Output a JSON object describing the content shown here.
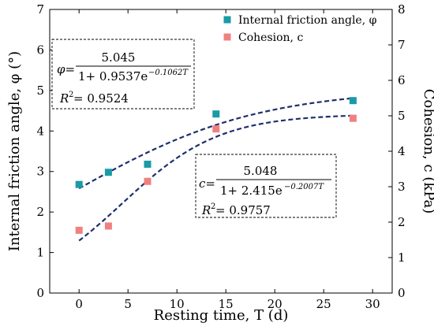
{
  "chart_data": {
    "type": "scatter",
    "xlabel": "Resting time, T (d)",
    "ylabel_left": "Internal friction angle, φ (°)",
    "ylabel_right": "Cohesion, c (kPa)",
    "xlim": [
      -3,
      32
    ],
    "ylim_left": [
      0,
      7
    ],
    "ylim_right": [
      0,
      8
    ],
    "x_ticks": [
      0,
      5,
      10,
      15,
      20,
      25,
      30
    ],
    "y_left_ticks": [
      0,
      1,
      2,
      3,
      4,
      5,
      6,
      7
    ],
    "y_right_ticks": [
      0,
      1,
      2,
      3,
      4,
      5,
      6,
      7,
      8
    ],
    "legend_position": "top-right",
    "series": [
      {
        "name": "Internal friction angle, φ",
        "axis": "left",
        "marker": "square",
        "color": "#1a9ba6",
        "x": [
          0,
          3,
          7,
          14,
          28
        ],
        "y": [
          2.68,
          2.98,
          3.18,
          4.42,
          4.75
        ]
      },
      {
        "name": "Cohesion, c",
        "axis": "right",
        "marker": "square",
        "color": "#f08080",
        "x": [
          0,
          3,
          7,
          14,
          28
        ],
        "y": [
          1.77,
          1.89,
          3.15,
          4.63,
          4.93
        ]
      }
    ],
    "fits": [
      {
        "series": "Internal friction angle, φ",
        "axis": "left",
        "a": 5.045,
        "b": 0.9537,
        "k": 0.1062,
        "color": "#1f2f6b",
        "style": "dashed"
      },
      {
        "series": "Cohesion, c",
        "axis": "right",
        "a": 5.048,
        "b": 2.415,
        "k": 0.2007,
        "color": "#1f2f6b",
        "style": "dashed"
      }
    ],
    "annotations": {
      "phi": {
        "lhs": "φ=",
        "numerator": "5.045",
        "denominator_base": "1+ 0.9537e",
        "exponent": "−0.1062T",
        "r2_label": "R",
        "r2_sup": "2",
        "r2_value": " = 0.9524"
      },
      "c": {
        "lhs": "c=",
        "numerator": "5.048",
        "denominator_base": "1+ 2.415e",
        "exponent": "−0.2007T",
        "r2_label": "R",
        "r2_sup": "2",
        "r2_value": " = 0.9757"
      }
    }
  }
}
